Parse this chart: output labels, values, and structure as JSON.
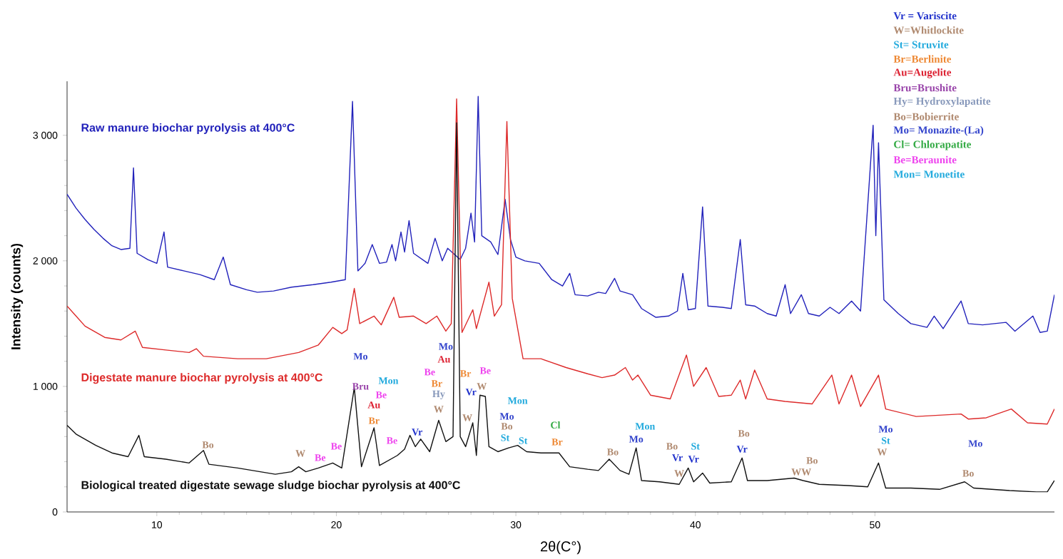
{
  "chart_data": {
    "type": "line",
    "xlabel": "2θ(C°)",
    "ylabel": "Intensity (counts)",
    "xlim": [
      5,
      60
    ],
    "ylim": [
      0,
      3430
    ],
    "xticks": [
      10,
      20,
      30,
      40,
      50
    ],
    "yticks": [
      0,
      {
        "value": 1000,
        "label": "1 000"
      },
      {
        "value": 2000,
        "label": "2 000"
      },
      {
        "value": 3000,
        "label": "3 000"
      }
    ],
    "series": [
      {
        "name": "Raw manure biochar pyrolysis at 400°C",
        "color": "#2222bb",
        "x": [
          5.0,
          5.5,
          6.0,
          6.5,
          7.0,
          7.5,
          8.0,
          8.5,
          8.7,
          8.9,
          9.5,
          10.0,
          10.4,
          10.6,
          11.5,
          12.4,
          13.2,
          13.7,
          14.1,
          15.0,
          15.6,
          16.5,
          17.5,
          18.7,
          19.7,
          20.5,
          20.9,
          21.2,
          21.6,
          22.0,
          22.4,
          22.8,
          23.1,
          23.3,
          23.6,
          23.8,
          24.05,
          24.3,
          25.1,
          25.5,
          25.9,
          26.2,
          26.6,
          26.9,
          27.2,
          27.5,
          27.7,
          27.9,
          28.1,
          28.3,
          28.6,
          29.0,
          29.4,
          29.7,
          30.0,
          30.5,
          31.3,
          32.0,
          32.6,
          33.0,
          33.3,
          34.0,
          34.6,
          35.0,
          35.5,
          35.8,
          36.5,
          37.0,
          37.8,
          38.5,
          39.0,
          39.3,
          39.6,
          40.0,
          40.4,
          40.7,
          41.5,
          42.0,
          42.5,
          42.8,
          43.3,
          44.0,
          44.5,
          45.0,
          45.3,
          45.9,
          46.3,
          46.9,
          47.5,
          48.0,
          48.7,
          49.2,
          49.9,
          50.05,
          50.2,
          50.5,
          51.3,
          52.0,
          52.9,
          53.3,
          53.8,
          54.8,
          55.2,
          56.0,
          57.3,
          57.8,
          58.8,
          59.2,
          59.6,
          60.0
        ],
        "values": [
          2530,
          2420,
          2330,
          2250,
          2180,
          2120,
          2090,
          2100,
          2740,
          2060,
          2010,
          1980,
          2230,
          1950,
          1920,
          1890,
          1850,
          2030,
          1810,
          1770,
          1750,
          1760,
          1790,
          1810,
          1830,
          1850,
          3270,
          1920,
          1980,
          2130,
          1980,
          1990,
          2130,
          2000,
          2230,
          2070,
          2320,
          2060,
          1980,
          2180,
          2000,
          2100,
          null,
          2010,
          2100,
          2380,
          2150,
          3310,
          2200,
          null,
          2150,
          2050,
          2490,
          2170,
          2030,
          2000,
          1980,
          1850,
          1800,
          1900,
          1730,
          1720,
          1750,
          1740,
          1860,
          1760,
          1730,
          1620,
          1550,
          1560,
          1600,
          1900,
          1610,
          1620,
          2430,
          1640,
          1630,
          1620,
          2170,
          1650,
          1640,
          1580,
          1560,
          1810,
          1580,
          1730,
          1580,
          1560,
          1630,
          1580,
          1680,
          1600,
          3080,
          2200,
          2940,
          1690,
          1580,
          1500,
          1470,
          1560,
          1460,
          1680,
          1500,
          1490,
          1510,
          1440,
          1560,
          1430,
          1440,
          1730
        ]
      },
      {
        "name": "Digestate manure biochar pyrolysis at 400°C",
        "color": "#dd2a2a",
        "x": [
          5.0,
          5.5,
          6.0,
          7.1,
          8.0,
          8.8,
          9.2,
          10.5,
          11.8,
          12.2,
          12.6,
          14.5,
          16.1,
          17.9,
          19.0,
          19.8,
          20.3,
          20.6,
          21.0,
          21.3,
          22.1,
          22.5,
          23.2,
          23.5,
          24.3,
          25.0,
          25.6,
          26.1,
          26.4,
          26.7,
          27.0,
          27.6,
          27.8,
          28.5,
          28.8,
          29.2,
          29.5,
          29.8,
          30.4,
          31.4,
          32.8,
          34.0,
          34.8,
          35.5,
          36.1,
          36.5,
          36.8,
          37.5,
          38.6,
          39.5,
          39.9,
          40.6,
          41.3,
          42.0,
          42.5,
          42.8,
          43.3,
          44.0,
          45.0,
          46.5,
          47.6,
          48.0,
          48.7,
          49.2,
          50.2,
          50.6,
          52.3,
          54.8,
          55.2,
          56.2,
          57.6,
          58.5,
          59.6,
          60.0
        ],
        "values": [
          1640,
          1560,
          1480,
          1390,
          1370,
          1440,
          1310,
          1290,
          1270,
          1300,
          1240,
          1220,
          1220,
          1270,
          1330,
          1470,
          1420,
          1450,
          1780,
          1500,
          1560,
          1490,
          1710,
          1550,
          1560,
          1500,
          1560,
          1440,
          1500,
          3290,
          1430,
          1610,
          1460,
          1830,
          1560,
          1650,
          3110,
          1700,
          1220,
          1220,
          1150,
          1100,
          1070,
          1090,
          1150,
          1050,
          1090,
          930,
          900,
          1250,
          1000,
          1150,
          920,
          930,
          1050,
          900,
          1130,
          900,
          880,
          860,
          1090,
          860,
          1090,
          840,
          1090,
          820,
          760,
          780,
          740,
          750,
          820,
          710,
          700,
          820
        ]
      },
      {
        "name": "Biological treated digestate sewage sludge biochar pyrolysis at 400°C",
        "color": "#111111",
        "x": [
          5.0,
          5.5,
          6.6,
          7.5,
          8.4,
          9.0,
          9.3,
          10.5,
          11.8,
          12.6,
          12.9,
          14.5,
          16.6,
          17.5,
          17.9,
          18.3,
          19.0,
          19.8,
          20.3,
          21.0,
          21.4,
          22.1,
          22.4,
          23.4,
          23.8,
          24.1,
          24.4,
          24.7,
          25.2,
          25.7,
          26.1,
          26.5,
          26.7,
          26.9,
          27.2,
          27.6,
          27.8,
          28.0,
          28.3,
          28.5,
          29.0,
          29.6,
          30.1,
          30.6,
          31.4,
          32.4,
          33.0,
          34.0,
          34.6,
          35.2,
          35.8,
          36.3,
          36.7,
          37.0,
          38.0,
          39.1,
          39.6,
          39.9,
          40.4,
          40.8,
          42.0,
          42.6,
          42.9,
          44.0,
          45.5,
          46.0,
          46.9,
          48.5,
          49.6,
          50.2,
          50.6,
          52.0,
          53.6,
          55.0,
          55.5,
          57.5,
          59.0,
          59.6,
          60.0
        ],
        "values": [
          690,
          620,
          530,
          470,
          440,
          610,
          440,
          420,
          390,
          490,
          380,
          350,
          300,
          320,
          360,
          320,
          350,
          390,
          350,
          990,
          360,
          670,
          370,
          450,
          500,
          610,
          520,
          580,
          480,
          730,
          560,
          600,
          3100,
          600,
          520,
          710,
          450,
          930,
          920,
          520,
          480,
          510,
          530,
          480,
          470,
          470,
          360,
          340,
          330,
          420,
          330,
          300,
          510,
          250,
          240,
          220,
          350,
          240,
          310,
          230,
          240,
          430,
          250,
          250,
          270,
          250,
          220,
          210,
          200,
          390,
          190,
          190,
          180,
          240,
          190,
          170,
          160,
          160,
          250
        ]
      }
    ],
    "annotations": [
      "Vr = Variscite",
      "W=Whitlockite",
      "St= Struvite",
      "Br=Berlinite",
      "Au=Augelite",
      "Bru=Brushite",
      "Hy= Hydroxylapatite",
      "Bo=Bobierrite",
      "Mo= Monazite-(La)",
      "Cl= Chlorapatite",
      "Be=Beraunite",
      "Mon= Monetite",
      "Bo",
      "W",
      "Be",
      "Be",
      "Mo",
      "Bru",
      "Mon",
      "Be",
      "Au",
      "Br",
      "Be",
      "Vr",
      "Be",
      "Br",
      "Hy",
      "W",
      "Mo",
      "Au",
      "Br",
      "Be",
      "Vr",
      "W",
      "W",
      "Mon",
      "Mo",
      "Bo",
      "St",
      "St",
      "Cl",
      "Br",
      "Bo",
      "Mon",
      "Mo",
      "Bo",
      "Vr",
      "W",
      "St",
      "Vr",
      "Bo",
      "Vr",
      "Bo",
      "WW",
      "Mo",
      "St",
      "W",
      "Mo",
      "Bo"
    ]
  }
}
